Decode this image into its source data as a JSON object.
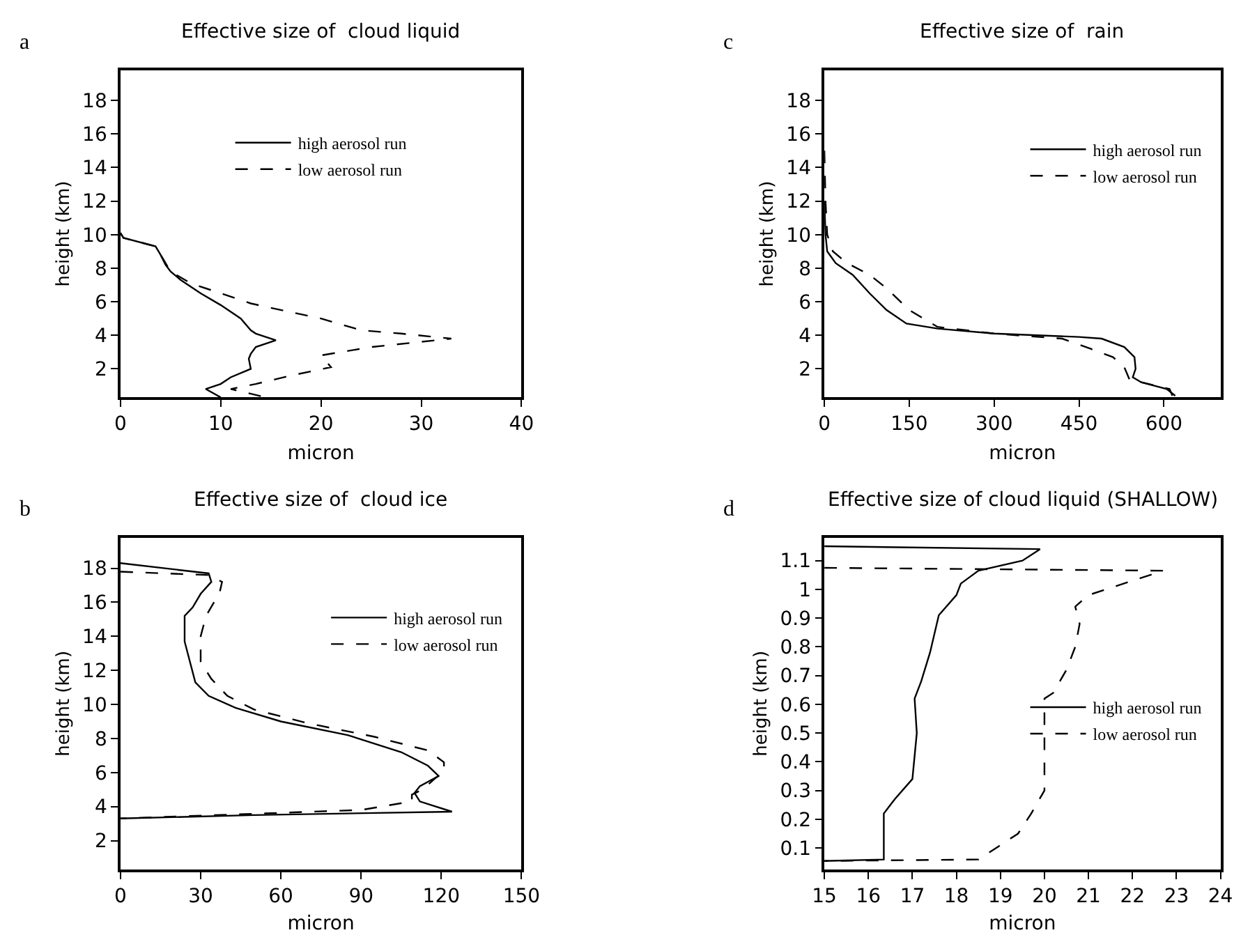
{
  "chart_data": [
    {
      "type": "line",
      "title": "Effective size of  cloud liquid",
      "subtitle": "a",
      "xlabel": "micron",
      "ylabel": "height (km)",
      "xlim": [
        0,
        40
      ],
      "xticks": [
        0,
        10,
        20,
        30,
        40
      ],
      "ylim": [
        0.3,
        19.8
      ],
      "yticks": [
        2,
        4,
        6,
        8,
        10,
        12,
        14,
        16,
        18
      ],
      "legend": "top",
      "marker": "none",
      "series": [
        {
          "name": "high aerosol run",
          "color": "#000000",
          "line_style": "solid",
          "x": [
            0,
            0.3,
            3.5,
            4,
            4.5,
            5,
            6,
            8,
            10,
            12,
            13,
            13.5,
            15.5,
            13.5,
            13,
            12.8,
            13,
            11,
            10,
            8.5,
            10
          ],
          "values": [
            10.1,
            9.8,
            9.3,
            8.8,
            8.2,
            7.8,
            7.3,
            6.5,
            5.8,
            5,
            4.3,
            4.1,
            3.7,
            3.3,
            2.9,
            2.6,
            2,
            1.5,
            1.1,
            0.8,
            0.3
          ]
        },
        {
          "name": "low aerosol run",
          "color": "#000000",
          "line_style": "dashed",
          "x": [
            0,
            0.3,
            3.5,
            4.2,
            5,
            7,
            10,
            13,
            14.5,
            20,
            24,
            28,
            33,
            25,
            20,
            21,
            17,
            13.5,
            11,
            14.5
          ],
          "values": [
            10.1,
            9.8,
            9.3,
            8.6,
            7.8,
            7.1,
            6.5,
            5.9,
            5.7,
            5,
            4.3,
            4.1,
            3.8,
            3.3,
            2.8,
            2.1,
            1.6,
            1.1,
            0.8,
            0.3
          ]
        }
      ]
    },
    {
      "type": "line",
      "title": "Effective size of  rain",
      "subtitle": "c",
      "xlabel": "micron",
      "ylabel": "height (km)",
      "xlim": [
        0,
        700
      ],
      "xticks": [
        0,
        150,
        300,
        450,
        600
      ],
      "ylim": [
        0.3,
        19.8
      ],
      "yticks": [
        2,
        4,
        6,
        8,
        10,
        12,
        14,
        16,
        18
      ],
      "legend": "top right",
      "marker": "none",
      "series": [
        {
          "name": "high aerosol run",
          "color": "#000000",
          "line_style": "solid",
          "x": [
            0,
            2,
            5,
            20,
            50,
            80,
            110,
            145,
            200,
            300,
            450,
            490,
            530,
            548,
            550,
            545,
            560,
            605,
            620
          ],
          "values": [
            12,
            10,
            9,
            8.3,
            7.6,
            6.5,
            5.5,
            4.7,
            4.4,
            4.1,
            3.9,
            3.8,
            3.3,
            2.7,
            2,
            1.5,
            1.2,
            0.8,
            0.4
          ]
        },
        {
          "name": "low aerosol run",
          "color": "#000000",
          "line_style": "dashed",
          "x": [
            0,
            2,
            5,
            15,
            40,
            80,
            110,
            150,
            200,
            300,
            420,
            470,
            510,
            530,
            540,
            560,
            610,
            615
          ],
          "values": [
            15,
            12,
            10,
            9,
            8.3,
            7.6,
            6.8,
            5.5,
            4.5,
            4.1,
            3.8,
            3.2,
            2.7,
            2.1,
            1.3,
            1.2,
            0.8,
            0.4
          ]
        }
      ]
    },
    {
      "type": "line",
      "title": "Effective size of  cloud ice",
      "subtitle": "b",
      "xlabel": "micron",
      "ylabel": "height (km)",
      "xlim": [
        0,
        150
      ],
      "xticks": [
        0,
        30,
        60,
        90,
        120,
        150
      ],
      "ylim": [
        0.3,
        19.8
      ],
      "yticks": [
        2,
        4,
        6,
        8,
        10,
        12,
        14,
        16,
        18
      ],
      "legend": "top right",
      "marker": "none",
      "series": [
        {
          "name": "high aerosol run",
          "color": "#000000",
          "line_style": "solid",
          "x": [
            0,
            33,
            34,
            30,
            27,
            24,
            24,
            26,
            28,
            33,
            43,
            60,
            85,
            105,
            115,
            119,
            112,
            110,
            112,
            124,
            50,
            0
          ],
          "values": [
            18.3,
            17.7,
            17.2,
            16.5,
            15.7,
            15.2,
            13.7,
            12.5,
            11.3,
            10.5,
            9.8,
            9,
            8.2,
            7.2,
            6.4,
            5.8,
            5.2,
            4.8,
            4.3,
            3.7,
            3.5,
            3.3
          ]
        },
        {
          "name": "low aerosol run",
          "color": "#000000",
          "line_style": "dashed",
          "x": [
            0,
            33,
            38,
            37,
            35,
            32,
            30,
            30,
            34,
            40,
            50,
            70,
            95,
            115,
            121,
            121,
            118,
            113,
            109,
            109,
            90,
            0
          ],
          "values": [
            17.8,
            17.6,
            17.2,
            16.5,
            16,
            15.2,
            14,
            12.5,
            11.5,
            10.5,
            9.7,
            8.9,
            8.1,
            7.3,
            6.6,
            6,
            5.7,
            5,
            4.7,
            4.3,
            3.8,
            3.3
          ]
        }
      ]
    },
    {
      "type": "line",
      "title": "Effective size of cloud liquid (SHALLOW)",
      "subtitle": "d",
      "xlabel": "micron",
      "ylabel": "height (km)",
      "xlim": [
        15,
        24
      ],
      "xticks": [
        15,
        16,
        17,
        18,
        19,
        20,
        21,
        22,
        23,
        24
      ],
      "ylim": [
        0.025,
        1.18
      ],
      "yticks": [
        0.1,
        0.2,
        0.3,
        0.4,
        0.5,
        0.6,
        0.7,
        0.8,
        0.9,
        1,
        1.1
      ],
      "legend": "right",
      "marker": "none",
      "series": [
        {
          "name": "high aerosol run",
          "color": "#000000",
          "line_style": "solid",
          "x": [
            15,
            19.9,
            19.5,
            18.5,
            18.1,
            18,
            17.6,
            17.4,
            17.2,
            17.05,
            17.1,
            17.0,
            16.6,
            16.35,
            16.35,
            15
          ],
          "values": [
            1.15,
            1.14,
            1.1,
            1.065,
            1.02,
            0.98,
            0.91,
            0.78,
            0.68,
            0.62,
            0.5,
            0.34,
            0.27,
            0.22,
            0.06,
            0.055
          ]
        },
        {
          "name": "low aerosol run",
          "color": "#000000",
          "line_style": "dashed",
          "x": [
            15,
            22.7,
            21,
            20.7,
            20.8,
            20.7,
            20.5,
            20.2,
            20,
            20,
            19.7,
            19.4,
            18.5,
            15
          ],
          "values": [
            1.075,
            1.065,
            0.98,
            0.94,
            0.88,
            0.8,
            0.72,
            0.64,
            0.62,
            0.3,
            0.22,
            0.15,
            0.06,
            0.055
          ]
        }
      ]
    }
  ]
}
